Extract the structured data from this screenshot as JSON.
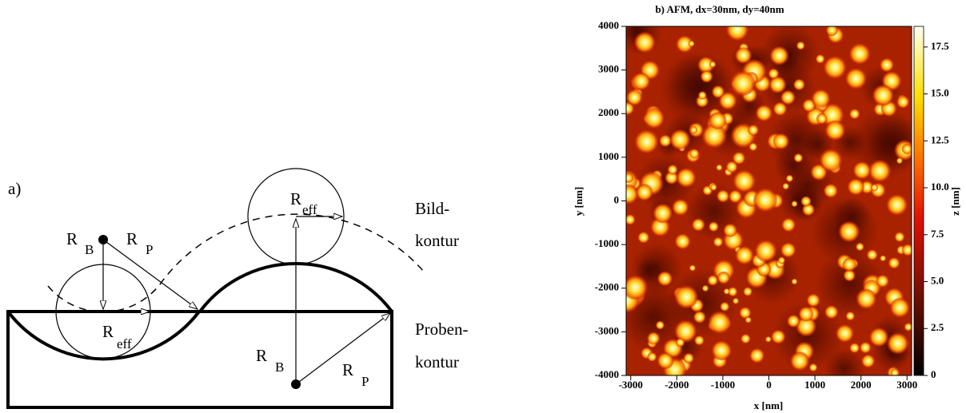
{
  "diagram": {
    "panel_label": "a)",
    "radius_labels": [
      {
        "symbol": "R",
        "subscript": "B"
      },
      {
        "symbol": "R",
        "subscript": "P"
      },
      {
        "symbol": "R",
        "subscript": "eff"
      },
      {
        "symbol": "R",
        "subscript": "eff"
      },
      {
        "symbol": "R",
        "subscript": "B"
      },
      {
        "symbol": "R",
        "subscript": "P"
      }
    ],
    "image_contour": [
      "Bild-",
      "kontur"
    ],
    "sample_contour": [
      "Proben-",
      "kontur"
    ]
  },
  "chart_data": {
    "type": "image",
    "title": "b)  AFM,  dx=30nm,  dy=40nm",
    "xlabel": "x  [nm]",
    "ylabel": "y  [nm]",
    "xlim": [
      -3100,
      3100
    ],
    "ylim": [
      -4000,
      4000
    ],
    "xticks": [
      -3000,
      -2000,
      -1000,
      0,
      1000,
      2000,
      3000
    ],
    "yticks": [
      -4000,
      -3000,
      -2000,
      -1000,
      0,
      1000,
      2000,
      3000,
      4000
    ],
    "colorbar": {
      "label": "z  [nm]",
      "lim": [
        0,
        18.6
      ],
      "ticks": [
        0,
        2.5,
        {
          "value": 5,
          "label": "5.0"
        },
        7.5,
        {
          "value": 10,
          "label": "10.0"
        },
        12.5,
        {
          "value": 15,
          "label": "15.0"
        },
        17.5
      ]
    }
  }
}
